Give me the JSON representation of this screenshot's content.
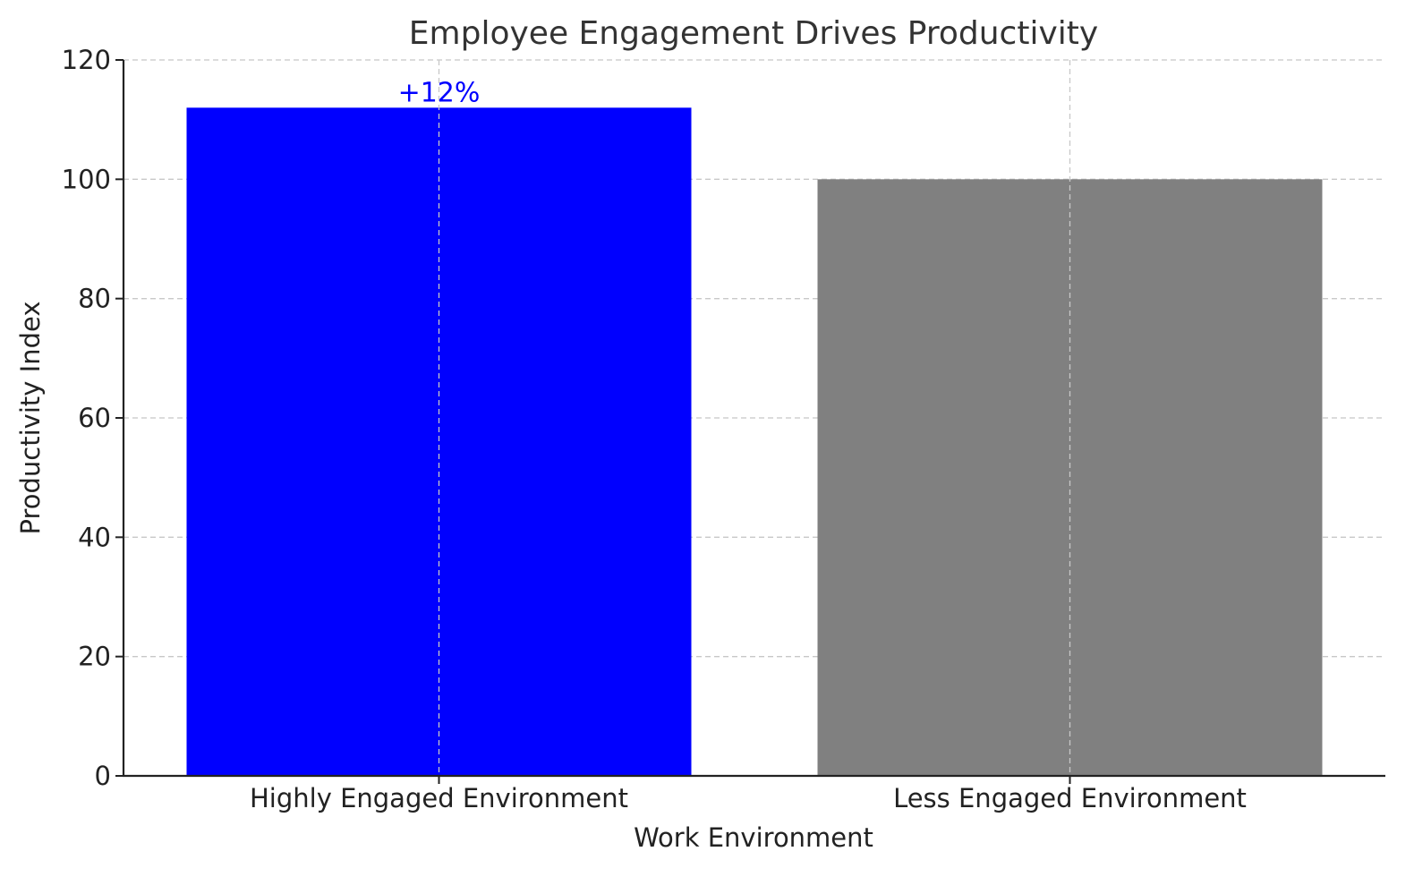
{
  "chart_data": {
    "type": "bar",
    "title": "Employee Engagement Drives Productivity",
    "xlabel": "Work Environment",
    "ylabel": "Productivity Index",
    "categories": [
      "Highly Engaged Environment",
      "Less Engaged Environment"
    ],
    "values": [
      112,
      100
    ],
    "colors": [
      "#0000ff",
      "#808080"
    ],
    "ylim": [
      0,
      120
    ],
    "yticks": [
      0,
      20,
      40,
      60,
      80,
      100,
      120
    ],
    "grid": true,
    "annotations": [
      {
        "category_index": 0,
        "text": "+12%",
        "color": "#0000ff"
      }
    ]
  }
}
